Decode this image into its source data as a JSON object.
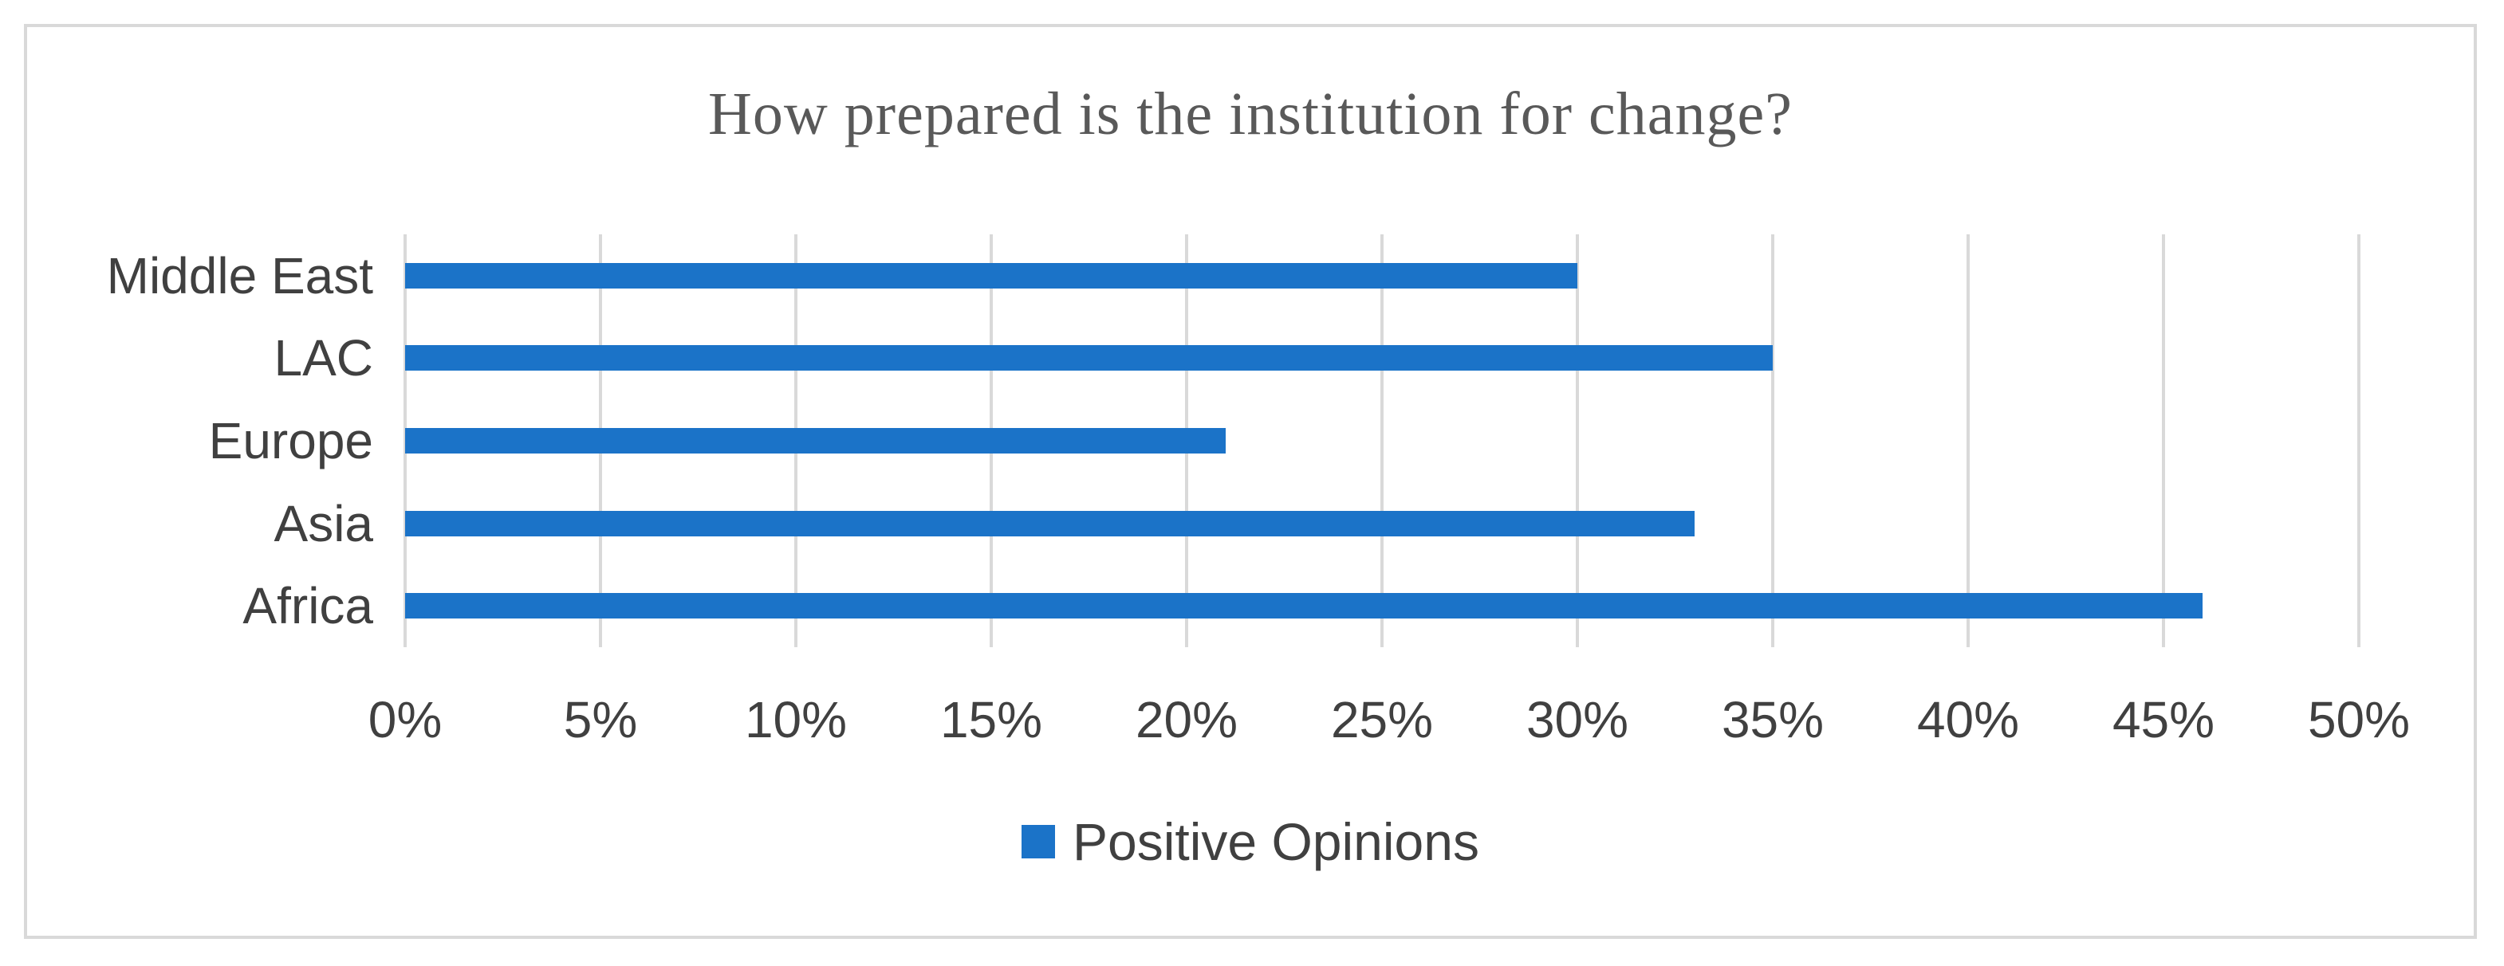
{
  "frame": {
    "border_color": "#D9D9D9",
    "background_color": "#FFFFFF"
  },
  "chart_data": {
    "type": "bar",
    "orientation": "horizontal",
    "title": "How prepared is the institution for change?",
    "categories": [
      "Middle East",
      "LAC",
      "Europe",
      "Asia",
      "Africa"
    ],
    "categories_order": "top-to-bottom",
    "values": [
      30,
      35,
      21,
      33,
      46
    ],
    "unit": "%",
    "series": [
      {
        "name": "Positive Opinions",
        "values": [
          30,
          35,
          21,
          33,
          46
        ]
      }
    ],
    "xlabel": "",
    "ylabel": "",
    "xlim": [
      0,
      50
    ],
    "x_tick_values": [
      0,
      5,
      10,
      15,
      20,
      25,
      30,
      35,
      40,
      45,
      50
    ],
    "x_tick_labels": [
      "0%",
      "5%",
      "10%",
      "15%",
      "20%",
      "25%",
      "30%",
      "35%",
      "40%",
      "45%",
      "50%"
    ],
    "grid": true,
    "gridline_color": "#D9D9D9",
    "bar_color": "#1B73C8",
    "label_color": "#404040",
    "title_color": "#595959",
    "legend_position": "bottom"
  },
  "legend": {
    "label": "Positive Opinions",
    "swatch_color": "#1B73C8"
  }
}
